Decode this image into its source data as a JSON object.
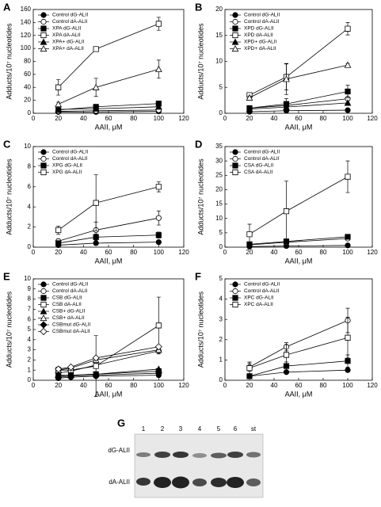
{
  "chart_data": [
    {
      "type": "line",
      "label": "A",
      "xlabel": "AAII, μM",
      "ylabel": "Adducts/10⁷ nucleotides",
      "xlim": [
        0,
        120
      ],
      "xticks": [
        0,
        20,
        40,
        60,
        80,
        100,
        120
      ],
      "ylim": [
        0,
        160
      ],
      "yticks": [
        0,
        20,
        40,
        60,
        80,
        100,
        120,
        140,
        160
      ],
      "x": [
        20,
        50,
        100
      ],
      "series": [
        {
          "name": "Control dG-ALII",
          "color": "#000000",
          "marker": "circle",
          "filled": true,
          "values": [
            2,
            2,
            3
          ]
        },
        {
          "name": "Control dA-ALII",
          "color": "#000000",
          "marker": "circle",
          "filled": false,
          "values": [
            3,
            4,
            5
          ]
        },
        {
          "name": "XPA dG-ALII",
          "color": "#000000",
          "marker": "square",
          "filled": true,
          "values": [
            5,
            10,
            15
          ]
        },
        {
          "name": "XPA dA-ALII",
          "color": "#000000",
          "marker": "square",
          "filled": false,
          "values": [
            40,
            99,
            138
          ],
          "errors": [
            12,
            3,
            10
          ]
        },
        {
          "name": "XPA+ dG-ALII",
          "color": "#000000",
          "marker": "triangle",
          "filled": true,
          "values": [
            6,
            7,
            10
          ]
        },
        {
          "name": "XPA+ dA-ALII",
          "color": "#000000",
          "marker": "triangle",
          "filled": false,
          "values": [
            14,
            40,
            68
          ],
          "errors": [
            3,
            14,
            14
          ]
        }
      ]
    },
    {
      "type": "line",
      "label": "B",
      "xlabel": "AAII, μM",
      "ylabel": "Adducts/10⁷ nucleotides",
      "xlim": [
        0,
        120
      ],
      "xticks": [
        0,
        20,
        40,
        60,
        80,
        100,
        120
      ],
      "ylim": [
        0,
        20
      ],
      "yticks": [
        0,
        5,
        10,
        15,
        20
      ],
      "x": [
        20,
        50,
        100
      ],
      "series": [
        {
          "name": "Control dG-ALII",
          "color": "#000000",
          "marker": "circle",
          "filled": true,
          "values": [
            0.3,
            0.5,
            0.6
          ]
        },
        {
          "name": "Control dA-ALII",
          "color": "#000000",
          "marker": "circle",
          "filled": false,
          "values": [
            1,
            1.5,
            2.8
          ]
        },
        {
          "name": "XPD dG-ALII",
          "color": "#000000",
          "marker": "square",
          "filled": true,
          "values": [
            1,
            1.8,
            4.2
          ],
          "errors": [
            0.3,
            1,
            1.2
          ]
        },
        {
          "name": "XPD dA-ALII",
          "color": "#000000",
          "marker": "square",
          "filled": false,
          "values": [
            3.5,
            7,
            16.3
          ],
          "errors": [
            0.5,
            2.5,
            1.2
          ]
        },
        {
          "name": "XPD+ dG-ALII",
          "color": "#000000",
          "marker": "triangle",
          "filled": true,
          "values": [
            0.8,
            1.2,
            2
          ]
        },
        {
          "name": "XPD+ dA-ALII",
          "color": "#000000",
          "marker": "triangle",
          "filled": false,
          "values": [
            3,
            6.6,
            9.3
          ],
          "errors": [
            0.3,
            3,
            0.3
          ]
        }
      ]
    },
    {
      "type": "line",
      "label": "C",
      "xlabel": "AAII, μM",
      "ylabel": "Adducts/10⁷ nucleotides",
      "xlim": [
        0,
        120
      ],
      "xticks": [
        0,
        20,
        40,
        60,
        80,
        100,
        120
      ],
      "ylim": [
        0,
        10
      ],
      "yticks": [
        0,
        2,
        4,
        6,
        8,
        10
      ],
      "x": [
        20,
        50,
        100
      ],
      "series": [
        {
          "name": "Control dG-ALII",
          "color": "#000000",
          "marker": "circle",
          "filled": true,
          "values": [
            0.2,
            0.4,
            0.5
          ]
        },
        {
          "name": "Control dA-ALII",
          "color": "#000000",
          "marker": "circle",
          "filled": false,
          "values": [
            0.6,
            1.7,
            2.9
          ],
          "errors": [
            0.2,
            0.8,
            0.7
          ]
        },
        {
          "name": "XPG dG-ALII",
          "color": "#000000",
          "marker": "square",
          "filled": true,
          "values": [
            0.4,
            1,
            1.2
          ],
          "errors": [
            0.1,
            0.3,
            0.3
          ]
        },
        {
          "name": "XPG dA-ALII",
          "color": "#000000",
          "marker": "square",
          "filled": false,
          "values": [
            1.7,
            4.4,
            6
          ],
          "errors": [
            0.4,
            2.8,
            0.5
          ]
        }
      ]
    },
    {
      "type": "line",
      "label": "D",
      "xlabel": "AAII, μM",
      "ylabel": "Adducts/10⁷ nucleotides",
      "xlim": [
        0,
        120
      ],
      "xticks": [
        0,
        20,
        40,
        60,
        80,
        100,
        120
      ],
      "ylim": [
        0,
        35
      ],
      "yticks": [
        0,
        5,
        10,
        15,
        20,
        25,
        30,
        35
      ],
      "x": [
        20,
        50,
        100
      ],
      "series": [
        {
          "name": "Control dG-ALII",
          "color": "#000000",
          "marker": "circle",
          "filled": true,
          "values": [
            0.2,
            0.4,
            0.6
          ]
        },
        {
          "name": "Control dA-ALII",
          "color": "#000000",
          "marker": "circle",
          "filled": false,
          "values": [
            0.8,
            1.7,
            3
          ]
        },
        {
          "name": "CSA dG-ALII",
          "color": "#000000",
          "marker": "square",
          "filled": true,
          "values": [
            1,
            2,
            3.6
          ]
        },
        {
          "name": "CSA dA-ALII",
          "color": "#000000",
          "marker": "square",
          "filled": false,
          "values": [
            4.5,
            12.5,
            24.5
          ],
          "errors": [
            3.5,
            10.5,
            5.5
          ]
        }
      ]
    },
    {
      "type": "line",
      "label": "E",
      "xlabel": "AAII, μM",
      "ylabel": "Adducts/10⁷ nucleotides",
      "xlim": [
        0,
        120
      ],
      "xticks": [
        0,
        20,
        40,
        60,
        80,
        100,
        120
      ],
      "ylim": [
        0,
        10
      ],
      "yticks": [
        0,
        1,
        2,
        3,
        4,
        5,
        6,
        7,
        8,
        9,
        10
      ],
      "x": [
        20,
        30,
        50,
        100
      ],
      "series": [
        {
          "name": "Control dG-ALII",
          "color": "#000000",
          "marker": "circle",
          "filled": true,
          "values": [
            0.2,
            0.3,
            0.4,
            0.5
          ]
        },
        {
          "name": "Control dA-ALII",
          "color": "#000000",
          "marker": "circle",
          "filled": false,
          "values": [
            0.7,
            0.9,
            1.5,
            2.9
          ]
        },
        {
          "name": "CSB dG-ALII",
          "color": "#000000",
          "marker": "square",
          "filled": true,
          "values": [
            0.4,
            0.5,
            0.6,
            0.9
          ]
        },
        {
          "name": "CSB dA-ALII",
          "color": "#000000",
          "marker": "square",
          "filled": false,
          "values": [
            1,
            1,
            1.4,
            5.4
          ],
          "errors": [
            0.3,
            0.3,
            3,
            2.8
          ]
        },
        {
          "name": "CSB+ dG-ALII",
          "color": "#000000",
          "marker": "triangle",
          "filled": true,
          "values": [
            0.5,
            0.5,
            0.6,
            1.1
          ]
        },
        {
          "name": "CSB+ dA-ALII",
          "color": "#000000",
          "marker": "triangle",
          "filled": false,
          "values": [
            1,
            1.2,
            2,
            3
          ]
        },
        {
          "name": "CSBmut dG-ALII",
          "color": "#000000",
          "marker": "diamond",
          "filled": true,
          "values": [
            0.3,
            0.4,
            0.5,
            0.7
          ]
        },
        {
          "name": "CSBmut dA-ALII",
          "color": "#000000",
          "marker": "diamond",
          "filled": false,
          "values": [
            1.1,
            1.3,
            2.2,
            3.3
          ]
        }
      ]
    },
    {
      "type": "line",
      "label": "F",
      "xlabel": "AAII, μM",
      "ylabel": "Adducts/10⁷ nucleotides",
      "xlim": [
        0,
        120
      ],
      "xticks": [
        0,
        20,
        40,
        60,
        80,
        100,
        120
      ],
      "ylim": [
        0,
        5
      ],
      "yticks": [
        0,
        1,
        2,
        3,
        4,
        5
      ],
      "x": [
        20,
        50,
        100
      ],
      "series": [
        {
          "name": "Control dG-ALII",
          "color": "#000000",
          "marker": "circle",
          "filled": true,
          "values": [
            0.2,
            0.4,
            0.5
          ]
        },
        {
          "name": "Control dA-ALII",
          "color": "#000000",
          "marker": "circle",
          "filled": false,
          "values": [
            0.65,
            1.65,
            2.95
          ],
          "errors": [
            0.2,
            0.2,
            0.6
          ]
        },
        {
          "name": "XPC dG-ALII",
          "color": "#000000",
          "marker": "square",
          "filled": true,
          "values": [
            0.2,
            0.7,
            0.95
          ],
          "errors": [
            0.1,
            0.2,
            0.3
          ]
        },
        {
          "name": "XPC dA-ALII",
          "color": "#000000",
          "marker": "square",
          "filled": false,
          "values": [
            0.6,
            1.25,
            2.1
          ],
          "errors": [
            0.3,
            0.5,
            1
          ]
        }
      ]
    }
  ],
  "gel": {
    "label": "G",
    "lanes": [
      "1",
      "2",
      "3",
      "4",
      "5",
      "6",
      "st"
    ],
    "bands": [
      "dG-ALII",
      "dA-ALII"
    ]
  }
}
